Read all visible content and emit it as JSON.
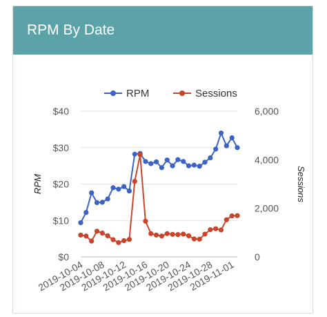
{
  "card": {
    "title": "RPM By Date"
  },
  "chart_data": {
    "type": "line",
    "title": "",
    "xlabel": "",
    "ylabel": "RPM",
    "y2label": "Sessions",
    "legend_position": "top",
    "grid": "horizontal",
    "ylim": [
      0,
      40
    ],
    "y2lim": [
      0,
      6000
    ],
    "yticks": [
      "$0",
      "$10",
      "$20",
      "$30",
      "$40"
    ],
    "y2ticks": [
      "0",
      "2,000",
      "4,000",
      "6,000"
    ],
    "xticks": [
      "2019-10-04",
      "2019-10-08",
      "2019-10-12",
      "2019-10-16",
      "2019-10-20",
      "2019-10-24",
      "2019-10-28",
      "2019-11-01"
    ],
    "x": [
      "2019-10-04",
      "2019-10-05",
      "2019-10-06",
      "2019-10-07",
      "2019-10-08",
      "2019-10-09",
      "2019-10-10",
      "2019-10-11",
      "2019-10-12",
      "2019-10-13",
      "2019-10-14",
      "2019-10-15",
      "2019-10-16",
      "2019-10-17",
      "2019-10-18",
      "2019-10-19",
      "2019-10-20",
      "2019-10-21",
      "2019-10-22",
      "2019-10-23",
      "2019-10-24",
      "2019-10-25",
      "2019-10-26",
      "2019-10-27",
      "2019-10-28",
      "2019-10-29",
      "2019-10-30",
      "2019-10-31",
      "2019-11-01",
      "2019-11-02"
    ],
    "series": [
      {
        "name": "RPM",
        "axis": "left",
        "color": "#3c62c4",
        "values": [
          9.4,
          12.2,
          17.6,
          14.9,
          15.0,
          15.9,
          19.0,
          18.6,
          19.3,
          18.1,
          28.2,
          28.4,
          26.2,
          25.6,
          26.1,
          24.5,
          26.6,
          25.0,
          26.7,
          26.2,
          25.0,
          25.2,
          24.9,
          26.0,
          27.2,
          29.6,
          34.0,
          30.5,
          32.7,
          30.0
        ]
      },
      {
        "name": "Sessions",
        "axis": "right",
        "color": "#c9442a",
        "values": [
          900,
          860,
          650,
          1060,
          980,
          870,
          710,
          590,
          670,
          720,
          3110,
          4210,
          1470,
          960,
          900,
          860,
          960,
          930,
          920,
          940,
          870,
          740,
          730,
          940,
          1120,
          1160,
          1110,
          1530,
          1690,
          1700
        ]
      }
    ]
  }
}
